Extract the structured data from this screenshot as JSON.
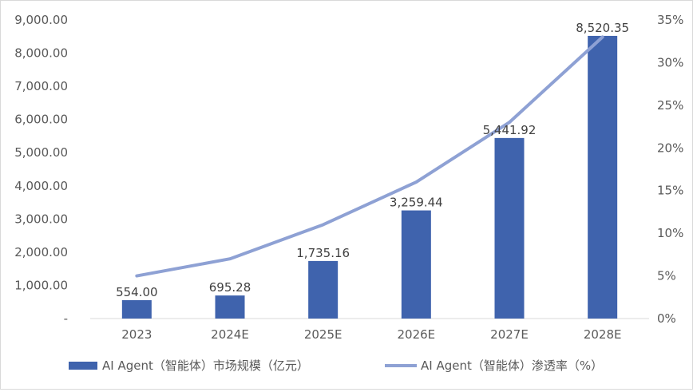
{
  "chart_data": {
    "type": "bar+line",
    "categories": [
      "2023",
      "2024E",
      "2025E",
      "2026E",
      "2027E",
      "2028E"
    ],
    "series": [
      {
        "name": "AI Agent（智能体）市场规模（亿元）",
        "type": "bar",
        "axis": "left",
        "color": "#3f63ad",
        "values": [
          554.0,
          695.28,
          1735.16,
          3259.44,
          5441.92,
          8520.35
        ],
        "labels": [
          "554.00",
          "695.28",
          "1,735.16",
          "3,259.44",
          "5,441.92",
          "8,520.35"
        ]
      },
      {
        "name": "AI Agent（智能体）渗透率（%）",
        "type": "line",
        "axis": "right",
        "color": "#8ea1d4",
        "values": [
          5,
          7,
          11,
          16,
          23,
          33
        ]
      }
    ],
    "y_left": {
      "min": 0,
      "max": 9000,
      "step": 1000,
      "tick_labels": [
        "-",
        "1,000.00",
        "2,000.00",
        "3,000.00",
        "4,000.00",
        "5,000.00",
        "6,000.00",
        "7,000.00",
        "8,000.00",
        "9,000.00"
      ]
    },
    "y_right": {
      "min": 0,
      "max": 35,
      "step": 5,
      "tick_labels": [
        "0%",
        "5%",
        "10%",
        "15%",
        "20%",
        "25%",
        "30%",
        "35%"
      ]
    },
    "legend_position": "bottom",
    "grid": false,
    "title": ""
  }
}
